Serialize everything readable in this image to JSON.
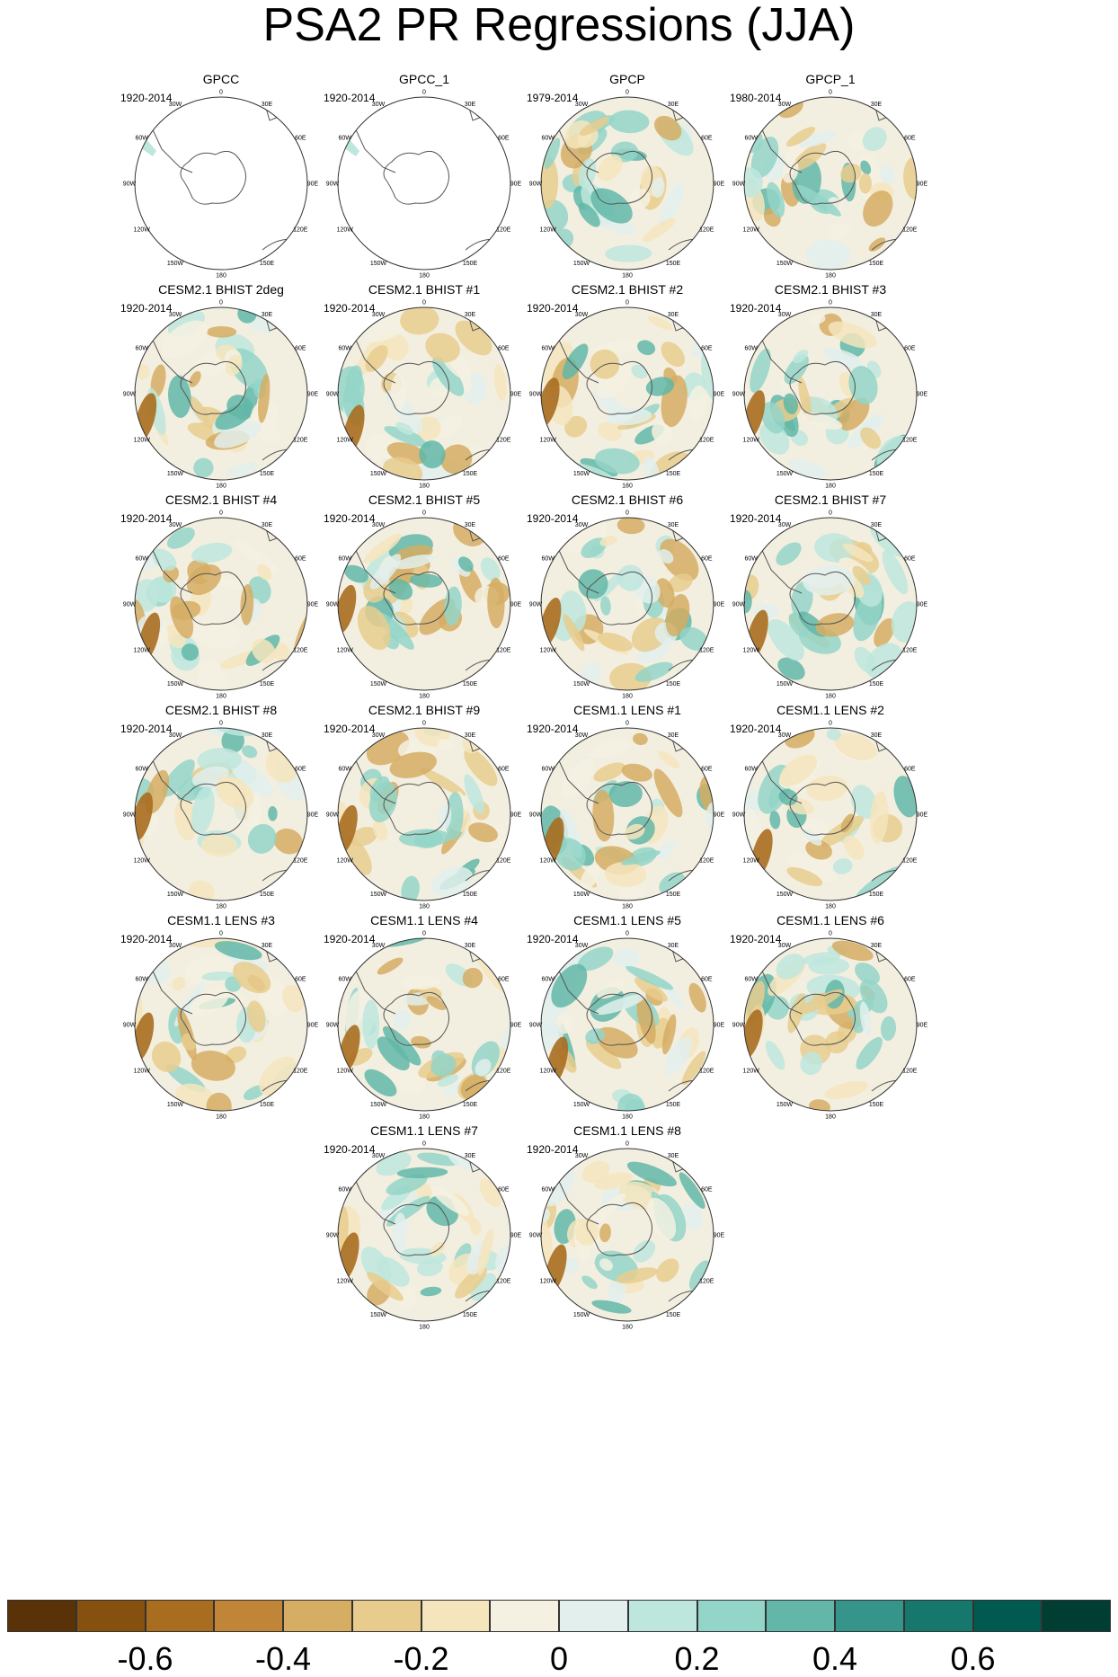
{
  "title": "PSA2 PR Regressions (JJA)",
  "lon_labels": [
    "0",
    "30E",
    "60E",
    "90E",
    "120E",
    "150E",
    "180",
    "150W",
    "120W",
    "90W",
    "60W",
    "30W"
  ],
  "panels": [
    {
      "title": "GPCC",
      "years": "1920-2014",
      "kind": "sparse"
    },
    {
      "title": "GPCC_1",
      "years": "1920-2014",
      "kind": "sparse"
    },
    {
      "title": "GPCP",
      "years": "1979-2014",
      "kind": "obs"
    },
    {
      "title": "GPCP_1",
      "years": "1980-2014",
      "kind": "obs"
    },
    {
      "title": "CESM2.1 BHIST 2deg",
      "years": "1920-2014",
      "kind": "model"
    },
    {
      "title": "CESM2.1 BHIST #1",
      "years": "1920-2014",
      "kind": "model"
    },
    {
      "title": "CESM2.1 BHIST #2",
      "years": "1920-2014",
      "kind": "model"
    },
    {
      "title": "CESM2.1 BHIST #3",
      "years": "1920-2014",
      "kind": "model"
    },
    {
      "title": "CESM2.1 BHIST #4",
      "years": "1920-2014",
      "kind": "model"
    },
    {
      "title": "CESM2.1 BHIST #5",
      "years": "1920-2014",
      "kind": "model"
    },
    {
      "title": "CESM2.1 BHIST #6",
      "years": "1920-2014",
      "kind": "model"
    },
    {
      "title": "CESM2.1 BHIST #7",
      "years": "1920-2014",
      "kind": "model"
    },
    {
      "title": "CESM2.1 BHIST #8",
      "years": "1920-2014",
      "kind": "model"
    },
    {
      "title": "CESM2.1 BHIST #9",
      "years": "1920-2014",
      "kind": "model"
    },
    {
      "title": "CESM1.1 LENS #1",
      "years": "1920-2014",
      "kind": "model"
    },
    {
      "title": "CESM1.1 LENS #2",
      "years": "1920-2014",
      "kind": "model"
    },
    {
      "title": "CESM1.1 LENS #3",
      "years": "1920-2014",
      "kind": "model"
    },
    {
      "title": "CESM1.1 LENS #4",
      "years": "1920-2014",
      "kind": "model"
    },
    {
      "title": "CESM1.1 LENS #5",
      "years": "1920-2014",
      "kind": "model"
    },
    {
      "title": "CESM1.1 LENS #6",
      "years": "1920-2014",
      "kind": "model"
    },
    {
      "title": "CESM1.1 LENS #7",
      "years": "1920-2014",
      "kind": "model"
    },
    {
      "title": "CESM1.1 LENS #8",
      "years": "1920-2014",
      "kind": "model"
    }
  ],
  "colorbar": {
    "colors": [
      "#5a3208",
      "#86500f",
      "#a86d1f",
      "#c08537",
      "#d5ad63",
      "#e8cc8e",
      "#f5e5bd",
      "#f5f1e2",
      "#e2efec",
      "#bde6dd",
      "#93d5c8",
      "#62b7a8",
      "#35958a",
      "#16776d",
      "#005a4f",
      "#003d33"
    ],
    "tick_labels": [
      "-0.6",
      "-0.4",
      "-0.2",
      "0",
      "0.2",
      "0.4",
      "0.6"
    ]
  }
}
